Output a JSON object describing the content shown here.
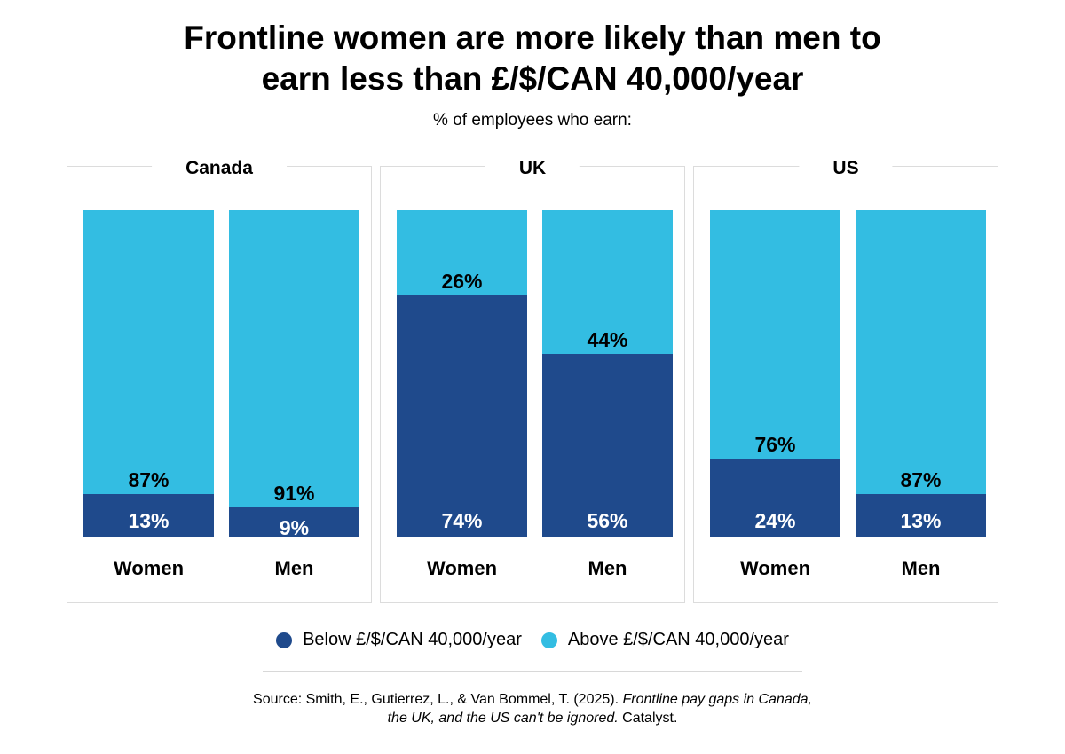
{
  "title_line1": "Frontline women are more likely than men to",
  "title_line2": "earn less than £/$/CAN 40,000/year",
  "subtitle": "% of employees who earn:",
  "legend": {
    "below": "Below £/$/CAN 40,000/year",
    "above": "Above £/$/CAN 40,000/year"
  },
  "colors": {
    "below": "#1f4a8c",
    "above": "#33bde2"
  },
  "source": {
    "prefix": "Source: Smith, E., Gutierrez, L., & Van Bommel, T. (2025). ",
    "italic1": "Frontline pay gaps in Canada,",
    "italic2": "the UK, and the US can't be ignored.",
    "suffix": " Catalyst."
  },
  "chart_data": {
    "type": "bar",
    "stacked": true,
    "title": "Frontline women are more likely than men to earn less than £/$/CAN 40,000/year",
    "subtitle": "% of employees who earn:",
    "panels": [
      {
        "name": "Canada",
        "categories": [
          "Women",
          "Men"
        ],
        "below": [
          13,
          9
        ],
        "above": [
          87,
          91
        ]
      },
      {
        "name": "UK",
        "categories": [
          "Women",
          "Men"
        ],
        "below": [
          74,
          56
        ],
        "above": [
          26,
          44
        ]
      },
      {
        "name": "US",
        "categories": [
          "Women",
          "Men"
        ],
        "below": [
          24,
          13
        ],
        "above": [
          76,
          87
        ]
      }
    ],
    "series": [
      "Below £/$/CAN 40,000/year",
      "Above £/$/CAN 40,000/year"
    ],
    "ylim": [
      0,
      100
    ],
    "legend": "bottom"
  }
}
